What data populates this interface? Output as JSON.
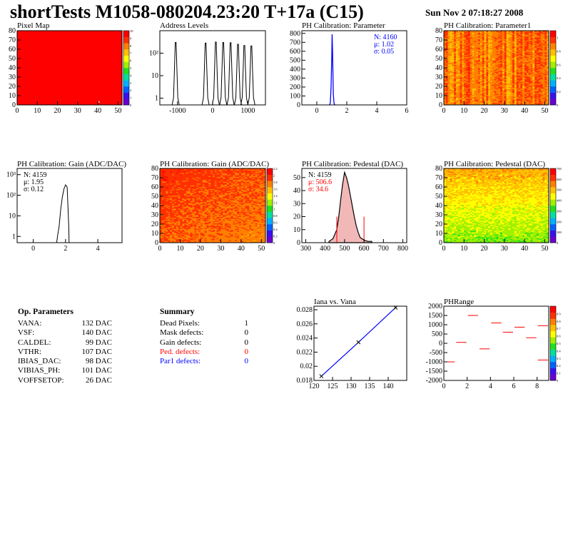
{
  "header": {
    "title": "shortTests M1058-080204.23:20 T+17a (C15)",
    "date": "Sun Nov  2 07:18:27 2008"
  },
  "panels": {
    "pixel_map": {
      "title": "Pixel Map"
    },
    "address_levels": {
      "title": "Address Levels"
    },
    "ph_cal_param": {
      "title": "PH Calibration: Parameter",
      "stats": [
        "N: 4160",
        "μ: 1.02",
        "σ: 0.05"
      ]
    },
    "ph_cal_param1": {
      "title": "PH Calibration: Parameter1"
    },
    "gain_hist": {
      "title": "PH Calibration: Gain (ADC/DAC)",
      "stats": [
        "N: 4159",
        "μ: 1.95",
        "σ: 0.12"
      ]
    },
    "gain_map": {
      "title": "PH Calibration: Gain (ADC/DAC)"
    },
    "pedestal_hist": {
      "title": "PH Calibration: Pedestal (DAC)",
      "stats": [
        "N: 4159",
        "μ: 506.6",
        "σ: 34.6"
      ]
    },
    "pedestal_map": {
      "title": "PH Calibration: Pedestal (DAC)"
    },
    "iana_vana": {
      "title": "Iana vs. Vana"
    },
    "phrange": {
      "title": "PHRange"
    }
  },
  "op_parameters": {
    "title": "Op. Parameters",
    "rows": [
      {
        "name": "VANA:",
        "value": "132 DAC"
      },
      {
        "name": "VSF:",
        "value": "140 DAC"
      },
      {
        "name": "CALDEL:",
        "value": "99 DAC"
      },
      {
        "name": "VTHR:",
        "value": "107 DAC"
      },
      {
        "name": "IBIAS_DAC:",
        "value": "98 DAC"
      },
      {
        "name": "VIBIAS_PH:",
        "value": "101 DAC"
      },
      {
        "name": "VOFFSETOP:",
        "value": "26 DAC"
      }
    ]
  },
  "summary": {
    "title": "Summary",
    "rows": [
      {
        "name": "Dead Pixels:",
        "value": "1",
        "color": "#000000"
      },
      {
        "name": "Mask defects:",
        "value": "0",
        "color": "#000000"
      },
      {
        "name": "Gain defects:",
        "value": "0",
        "color": "#000000"
      },
      {
        "name": "Ped. defects:",
        "value": "0",
        "color": "#ff0000"
      },
      {
        "name": "Par1 defects:",
        "value": "0",
        "color": "#0000ff"
      }
    ]
  },
  "chart_data": [
    {
      "type": "heatmap",
      "name": "pixel_map",
      "xlim": [
        0,
        52
      ],
      "ylim": [
        0,
        80
      ],
      "xticks": [
        0,
        10,
        20,
        30,
        40,
        50
      ],
      "yticks": [
        0,
        10,
        20,
        30,
        40,
        50,
        60,
        70,
        80
      ],
      "zticks": [
        0,
        1,
        2,
        3,
        4,
        5,
        6,
        7,
        8,
        9,
        10
      ],
      "zlim": [
        0,
        10
      ],
      "base_value": 10,
      "outliers": [
        {
          "col": 40,
          "row": 3,
          "value": 0
        }
      ]
    },
    {
      "type": "bar",
      "name": "address_levels",
      "scale": "log",
      "xlim": [
        -1500,
        1500
      ],
      "ylim": [
        0.5,
        1000
      ],
      "xticks": [
        -1000,
        0,
        1000
      ],
      "ytick_labels": [
        "1",
        "10",
        "10²"
      ],
      "yticks": [
        1,
        10,
        100
      ],
      "peaks": [
        {
          "x": -1050,
          "value": 300
        },
        {
          "x": -200,
          "value": 280
        },
        {
          "x": 90,
          "value": 310
        },
        {
          "x": 300,
          "value": 300
        },
        {
          "x": 510,
          "value": 290
        },
        {
          "x": 720,
          "value": 250
        },
        {
          "x": 900,
          "value": 220
        },
        {
          "x": 1100,
          "value": 210
        }
      ]
    },
    {
      "type": "bar",
      "name": "ph_cal_param",
      "xlim": [
        -1,
        6
      ],
      "ylim": [
        0,
        830
      ],
      "xticks": [
        0,
        2,
        4,
        6
      ],
      "yticks": [
        0,
        100,
        200,
        300,
        400,
        500,
        600,
        700,
        800
      ],
      "x": [
        0.9,
        0.95,
        1.0,
        1.02,
        1.05,
        1.1,
        1.15
      ],
      "values": [
        20,
        200,
        550,
        790,
        600,
        120,
        15
      ]
    },
    {
      "type": "heatmap",
      "name": "ph_cal_param1",
      "xlim": [
        0,
        52
      ],
      "ylim": [
        0,
        80
      ],
      "xticks": [
        0,
        10,
        20,
        30,
        40,
        50
      ],
      "yticks": [
        0,
        10,
        20,
        30,
        40,
        50,
        60,
        70,
        80
      ],
      "zlim": [
        0,
        1.1
      ],
      "zticks": [
        0,
        0.2,
        0.4,
        0.6,
        0.8,
        1
      ],
      "typical_value": 0.85
    },
    {
      "type": "bar",
      "name": "gain_hist",
      "scale": "log",
      "xlim": [
        -1,
        5.5
      ],
      "ylim": [
        0.5,
        2000
      ],
      "xticks": [
        0,
        2,
        4
      ],
      "yticks": [
        1,
        10,
        100,
        1000
      ],
      "ytick_labels": [
        "1",
        "10",
        "10²",
        "10³"
      ],
      "x": [
        1.5,
        1.6,
        1.7,
        1.8,
        1.9,
        2.0,
        2.1,
        2.2
      ],
      "values": [
        1,
        3,
        20,
        80,
        200,
        320,
        250,
        3
      ]
    },
    {
      "type": "heatmap",
      "name": "gain_map",
      "xlim": [
        0,
        52
      ],
      "ylim": [
        0,
        80
      ],
      "xticks": [
        0,
        10,
        20,
        30,
        40,
        50
      ],
      "yticks": [
        0,
        10,
        20,
        30,
        40,
        50,
        60,
        70,
        80
      ],
      "zlim": [
        0,
        2.2
      ],
      "zticks": [
        0,
        0.2,
        0.4,
        0.6,
        0.8,
        1,
        1.2,
        1.4,
        1.6,
        1.8,
        2,
        2.2
      ],
      "typical_value": 1.95
    },
    {
      "type": "bar",
      "name": "pedestal_hist",
      "xlim": [
        280,
        820
      ],
      "ylim": [
        0,
        57
      ],
      "xticks": [
        300,
        400,
        500,
        600,
        700,
        800
      ],
      "yticks": [
        0,
        10,
        20,
        30,
        40,
        50
      ],
      "x": [
        420,
        440,
        460,
        470,
        480,
        490,
        500,
        510,
        520,
        530,
        540,
        550,
        560,
        570,
        580,
        600,
        620,
        640
      ],
      "values": [
        1,
        3,
        10,
        20,
        33,
        45,
        54,
        50,
        44,
        36,
        28,
        20,
        13,
        8,
        4,
        2,
        1,
        1
      ],
      "cut_lines": [
        460,
        600
      ]
    },
    {
      "type": "heatmap",
      "name": "pedestal_map",
      "xlim": [
        0,
        52
      ],
      "ylim": [
        0,
        80
      ],
      "xticks": [
        0,
        10,
        20,
        30,
        40,
        50
      ],
      "yticks": [
        0,
        10,
        20,
        30,
        40,
        50,
        60,
        70,
        80
      ],
      "zlim": [
        0,
        700
      ],
      "zticks": [
        0,
        100,
        200,
        300,
        400,
        500,
        600,
        700
      ],
      "typical_value": 500
    },
    {
      "type": "line",
      "name": "iana_vana",
      "xlim": [
        120,
        145
      ],
      "ylim": [
        0.018,
        0.0285
      ],
      "xticks": [
        120,
        125,
        130,
        135,
        140
      ],
      "yticks": [
        0.018,
        0.02,
        0.022,
        0.024,
        0.026,
        0.028
      ],
      "points": [
        {
          "x": 122,
          "y": 0.0186
        },
        {
          "x": 132,
          "y": 0.0234
        },
        {
          "x": 142,
          "y": 0.0283
        }
      ]
    },
    {
      "type": "scatter",
      "name": "phrange",
      "xlim": [
        0,
        9
      ],
      "ylim": [
        -2000,
        2000
      ],
      "xticks": [
        0,
        2,
        4,
        6,
        8
      ],
      "yticks": [
        -2000,
        -1500,
        -1000,
        -500,
        0,
        500,
        1000,
        1500,
        2000
      ],
      "zlim": [
        0,
        1
      ],
      "zticks": [
        0,
        0.1,
        0.2,
        0.3,
        0.4,
        0.5,
        0.6,
        0.7,
        0.8,
        0.9
      ],
      "segments": [
        {
          "x": 0.5,
          "y": -1000
        },
        {
          "x": 1.5,
          "y": 50
        },
        {
          "x": 2.5,
          "y": 1500
        },
        {
          "x": 3.5,
          "y": -300
        },
        {
          "x": 4.5,
          "y": 1100
        },
        {
          "x": 5.5,
          "y": 600
        },
        {
          "x": 6.5,
          "y": 870
        },
        {
          "x": 7.5,
          "y": 300
        },
        {
          "x": 8.5,
          "y": 950
        },
        {
          "x": 8.5,
          "y": -900
        }
      ]
    }
  ]
}
